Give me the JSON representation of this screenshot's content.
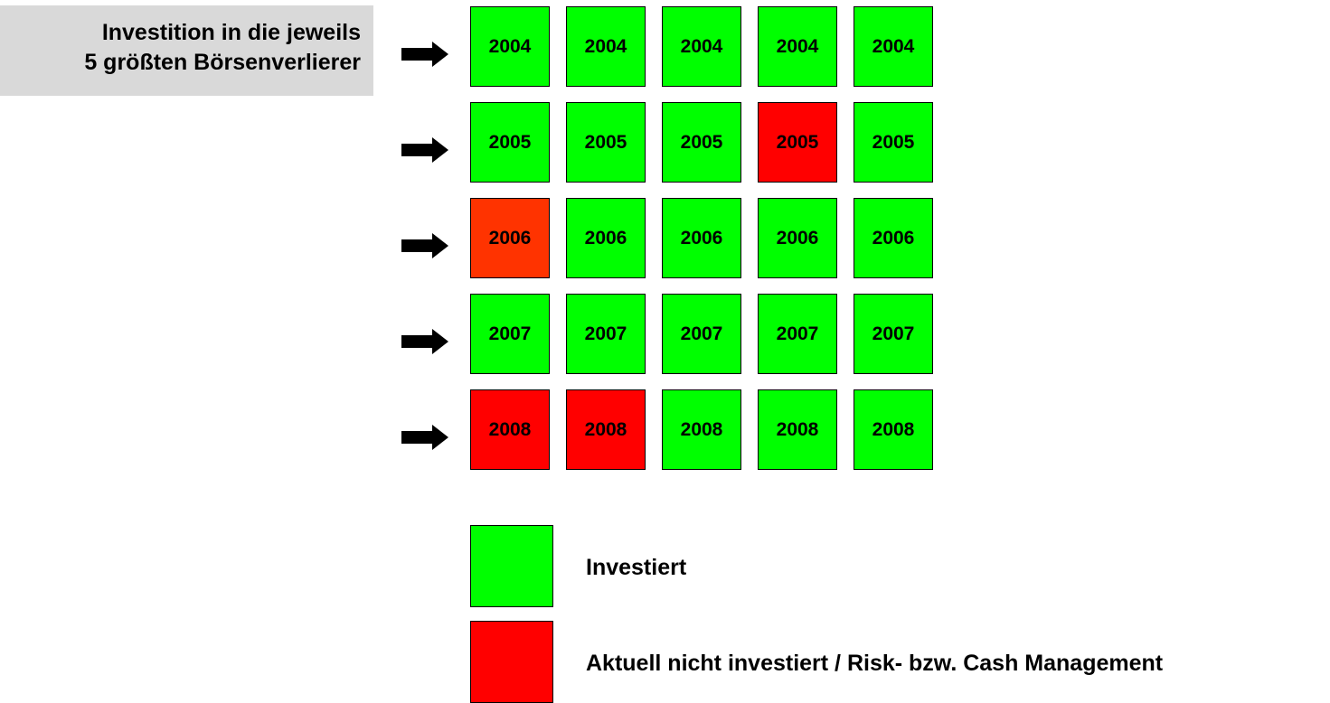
{
  "title": {
    "line1": "Investition in die jeweils",
    "line2": "5 größten Börsenverlierer"
  },
  "colors": {
    "green": "#00ff00",
    "red": "#ff0000",
    "orange_red": "#ff3300"
  },
  "rows": [
    {
      "cells": [
        {
          "label": "2004",
          "status": "green"
        },
        {
          "label": "2004",
          "status": "green"
        },
        {
          "label": "2004",
          "status": "green"
        },
        {
          "label": "2004",
          "status": "green"
        },
        {
          "label": "2004",
          "status": "green"
        }
      ]
    },
    {
      "cells": [
        {
          "label": "2005",
          "status": "green"
        },
        {
          "label": "2005",
          "status": "green"
        },
        {
          "label": "2005",
          "status": "green"
        },
        {
          "label": "2005",
          "status": "red"
        },
        {
          "label": "2005",
          "status": "green"
        }
      ]
    },
    {
      "cells": [
        {
          "label": "2006",
          "status": "orange_red"
        },
        {
          "label": "2006",
          "status": "green"
        },
        {
          "label": "2006",
          "status": "green"
        },
        {
          "label": "2006",
          "status": "green"
        },
        {
          "label": "2006",
          "status": "green"
        }
      ]
    },
    {
      "cells": [
        {
          "label": "2007",
          "status": "green"
        },
        {
          "label": "2007",
          "status": "green"
        },
        {
          "label": "2007",
          "status": "green"
        },
        {
          "label": "2007",
          "status": "green"
        },
        {
          "label": "2007",
          "status": "green"
        }
      ]
    },
    {
      "cells": [
        {
          "label": "2008",
          "status": "red"
        },
        {
          "label": "2008",
          "status": "red"
        },
        {
          "label": "2008",
          "status": "green"
        },
        {
          "label": "2008",
          "status": "green"
        },
        {
          "label": "2008",
          "status": "green"
        }
      ]
    }
  ],
  "legend": [
    {
      "label": "Investiert",
      "status": "green"
    },
    {
      "label": "Aktuell nicht investiert / Risk- bzw. Cash Management",
      "status": "red"
    }
  ]
}
